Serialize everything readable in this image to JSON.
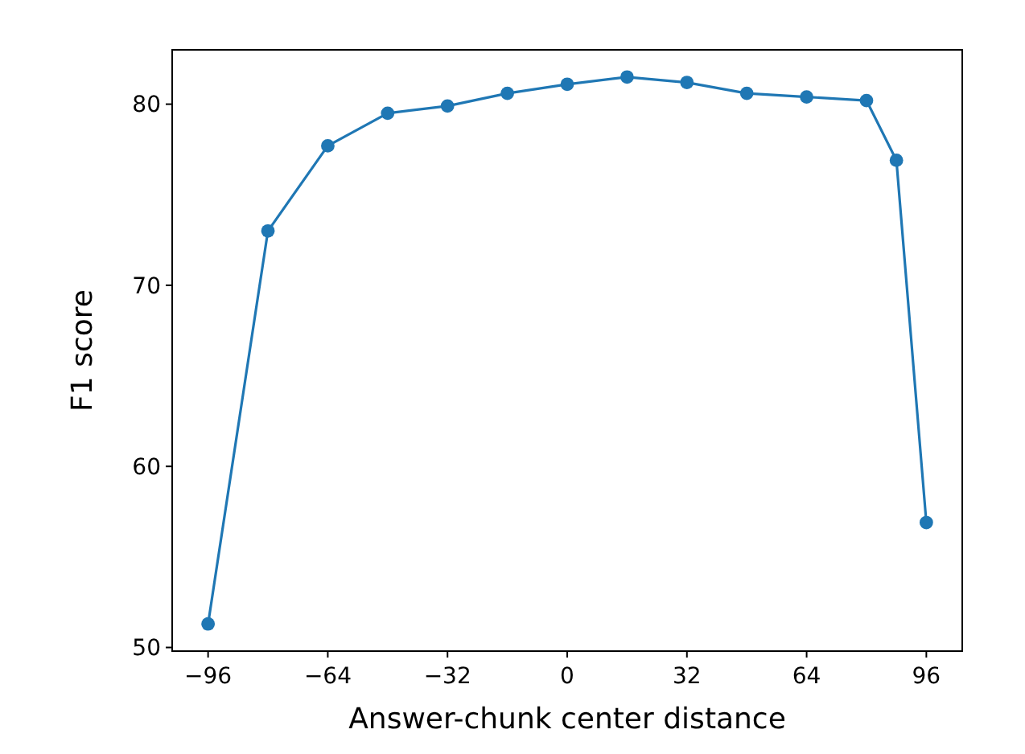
{
  "chart_data": {
    "type": "line",
    "xlabel": "Answer-chunk center distance",
    "ylabel": "F1 score",
    "x": [
      -96,
      -80,
      -64,
      -48,
      -32,
      -16,
      0,
      16,
      32,
      48,
      64,
      80,
      88,
      96
    ],
    "series": [
      {
        "color": "#1f77b4",
        "values": [
          51.3,
          73.0,
          77.7,
          79.5,
          79.9,
          80.6,
          81.1,
          81.5,
          81.2,
          80.6,
          80.4,
          80.2,
          76.9,
          56.9
        ]
      }
    ],
    "xlim": [
      -105.6,
      105.6
    ],
    "xticks": [
      -96,
      -64,
      -32,
      0,
      32,
      64,
      96
    ],
    "ylim": [
      49.8,
      83.0
    ],
    "yticks": [
      50,
      60,
      70,
      80
    ],
    "marker": "circle"
  }
}
